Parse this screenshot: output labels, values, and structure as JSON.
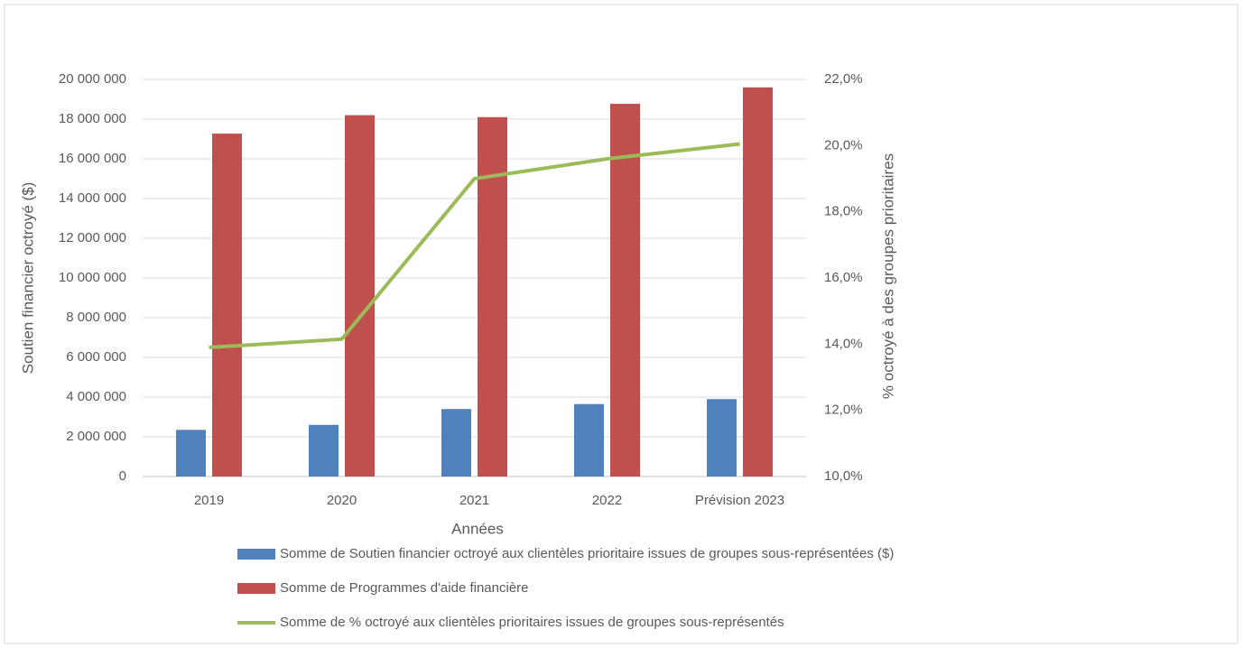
{
  "chart_data": {
    "type": "bar",
    "categories": [
      "2019",
      "2020",
      "2021",
      "2022",
      "Prévision 2023"
    ],
    "x_label": "Années",
    "y_label": "Soutien financier octroyé ($)",
    "y2_label": "% octroyé à des groupes prioritaires",
    "series": [
      {
        "name": "Somme de Soutien financier octroyé aux clientèles prioritaire issues de groupes sous-représentées ($)",
        "type": "bar",
        "color": "#4f81bd",
        "values": [
          2350000,
          2600000,
          3400000,
          3650000,
          3900000
        ]
      },
      {
        "name": "Somme de Programmes d'aide financière",
        "type": "bar",
        "color": "#c0504d",
        "values": [
          17270000,
          18200000,
          18100000,
          18770000,
          19600000
        ]
      },
      {
        "name": "Somme de % octroyé aux clientèles prioritaires issues de groupes sous-représentés",
        "type": "line",
        "axis": "y2",
        "color": "#9bbb59",
        "values": [
          13.9,
          14.15,
          19.0,
          19.6,
          20.05
        ]
      }
    ],
    "ylim": [
      0,
      20000000
    ],
    "yticks": [
      0,
      {
        "value": 2000000,
        "label": "2 000 000"
      },
      {
        "value": 4000000,
        "label": "4 000 000"
      },
      {
        "value": 6000000,
        "label": "6 000 000"
      },
      {
        "value": 8000000,
        "label": "8 000 000"
      },
      {
        "value": 10000000,
        "label": "10 000 000"
      },
      {
        "value": 12000000,
        "label": "12 000 000"
      },
      {
        "value": 14000000,
        "label": "14 000 000"
      },
      {
        "value": 16000000,
        "label": "16 000 000"
      },
      {
        "value": 18000000,
        "label": "18 000 000"
      },
      {
        "value": 20000000,
        "label": "20 000 000"
      }
    ],
    "y2lim": [
      10,
      22
    ],
    "y2ticks": [
      {
        "value": 10,
        "label": "10,0%"
      },
      {
        "value": 12,
        "label": "12,0%"
      },
      {
        "value": 14,
        "label": "14,0%"
      },
      {
        "value": 16,
        "label": "16,0%"
      },
      {
        "value": 18,
        "label": "18,0%"
      },
      {
        "value": 20,
        "label": "20,0%"
      },
      {
        "value": 22,
        "label": "22,0%"
      }
    ],
    "grid": true,
    "legend": "bottom"
  }
}
